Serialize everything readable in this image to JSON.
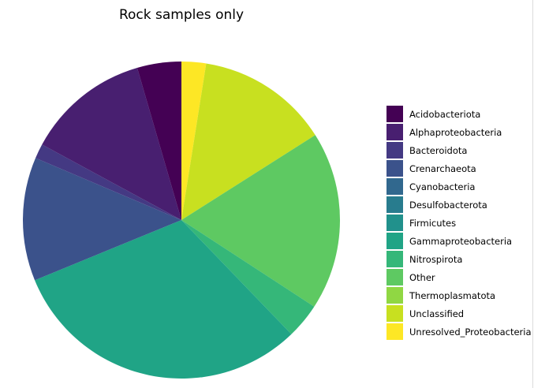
{
  "chart_data": {
    "type": "pie",
    "title": "Rock samples only",
    "start": "top, clockwise",
    "legend_position": "right",
    "categories": [
      "Unresolved_Proteobacteria",
      "Unclassified",
      "Other",
      "Nitrospirota",
      "Gammaproteobacteria",
      "Crenarchaeota",
      "Bacteroidota",
      "Alphaproteobacteria",
      "Acidobacteriota"
    ],
    "values": [
      2.5,
      13.5,
      18.2,
      3.6,
      31.0,
      12.6,
      1.5,
      12.6,
      4.5
    ],
    "colors": {
      "Acidobacteriota": "#440154",
      "Alphaproteobacteria": "#481f70",
      "Bacteroidota": "#443983",
      "Crenarchaeota": "#3b528b",
      "Cyanobacteria": "#31688e",
      "Desulfobacterota": "#287c8e",
      "Firmicutes": "#21918c",
      "Gammaproteobacteria": "#20a486",
      "Nitrospirota": "#35b779",
      "Other": "#5ec962",
      "Thermoplasmatota": "#90d743",
      "Unclassified": "#c8e020",
      "Unresolved_Proteobacteria": "#fde725"
    },
    "legend": [
      "Acidobacteriota",
      "Alphaproteobacteria",
      "Bacteroidota",
      "Crenarchaeota",
      "Cyanobacteria",
      "Desulfobacterota",
      "Firmicutes",
      "Gammaproteobacteria",
      "Nitrospirota",
      "Other",
      "Thermoplasmatota",
      "Unclassified",
      "Unresolved_Proteobacteria"
    ]
  }
}
